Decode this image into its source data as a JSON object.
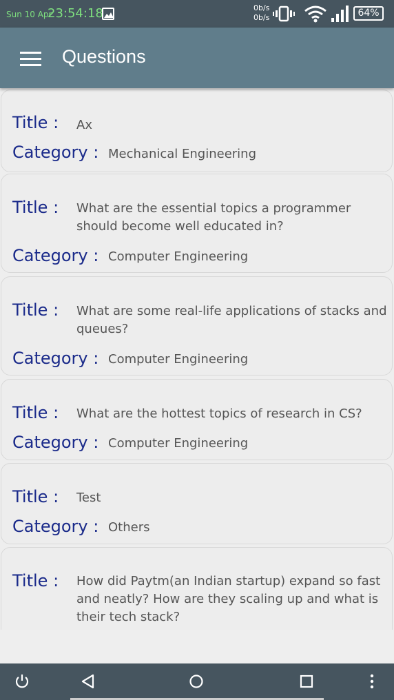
{
  "status_bar": {
    "date": "Sun 10 Apr",
    "time": "23:54:18",
    "net_up": "0b/s",
    "net_down": "0b/s",
    "battery": "64%",
    "icons": [
      "image-notification-icon",
      "vibrate-icon",
      "wifi-icon",
      "signal-icon",
      "battery-icon"
    ]
  },
  "app_bar": {
    "title": "Questions",
    "menu_icon": "hamburger-menu-icon"
  },
  "labels": {
    "title": "Title :",
    "category": "Category :"
  },
  "questions": [
    {
      "title": "Ax",
      "category": "Mechanical Engineering"
    },
    {
      "title": "What are the essential topics a programmer should become well educated in?",
      "category": "Computer Engineering"
    },
    {
      "title": "What are some real-life applications of stacks and queues?",
      "category": "Computer Engineering"
    },
    {
      "title": "What are the hottest topics of research in CS?",
      "category": "Computer Engineering"
    },
    {
      "title": "Test",
      "category": "Others"
    },
    {
      "title": "How did Paytm(an Indian startup) expand so fast and neatly? How are they scaling up and what is their tech stack?",
      "category": ""
    }
  ],
  "nav_bar": {
    "icons": [
      "power-icon",
      "back-icon",
      "home-icon",
      "recents-icon",
      "more-icon"
    ]
  },
  "colors": {
    "status_bar": "#46555f",
    "app_bar": "#607d8b",
    "label": "#1a2a8a",
    "value": "#555555",
    "background": "#eeeeee",
    "clock": "#7fe07f"
  }
}
